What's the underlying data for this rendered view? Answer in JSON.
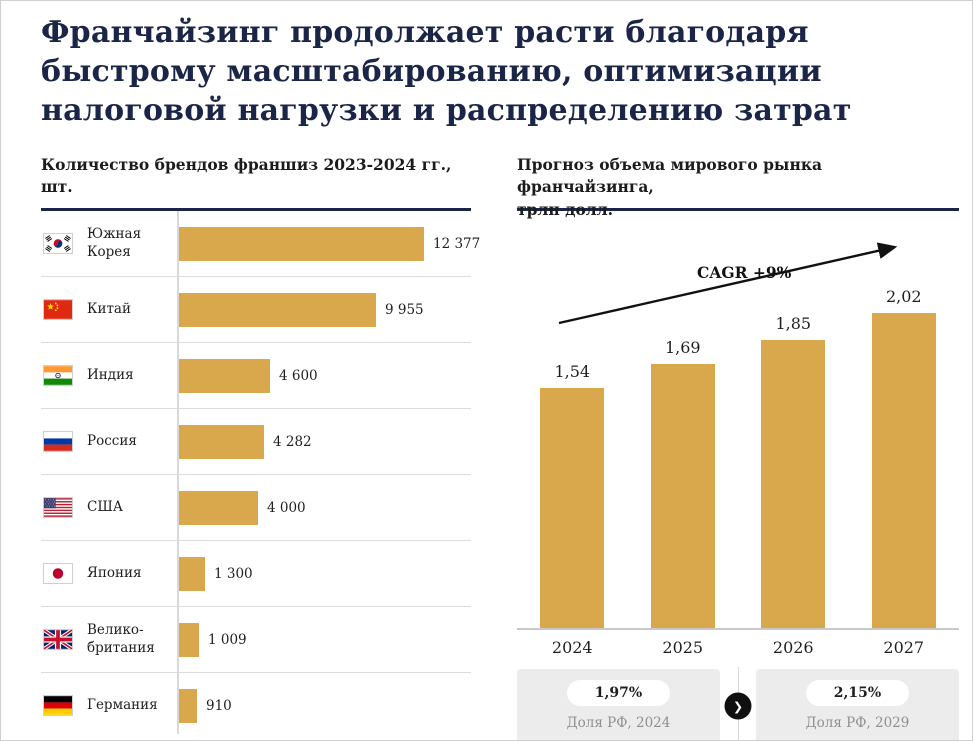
{
  "page": {
    "title": "Франчайзинг продолжает расти благодаря быстрому масштабированию, оптимизации налоговой нагрузки и распределению затрат"
  },
  "colors": {
    "bar_gold": "#d9a84c",
    "title_navy": "#1a2547",
    "footer_gray": "#ececec",
    "caption_gray": "#8f8f8f"
  },
  "left_header": {
    "line1": "Количество брендов франшиз 2023-2024 гг.,",
    "line2": "шт."
  },
  "right_header": {
    "line1": "Прогноз объема мирового рынка франчайзинга,",
    "line2": "трлн долл."
  },
  "icons": {
    "chevron_right": "❯"
  },
  "chart_data": [
    {
      "type": "bar",
      "orientation": "horizontal",
      "title": "Количество брендов франшиз 2023-2024 гг., шт.",
      "categories": [
        "Южная Корея",
        "Китай",
        "Индия",
        "Россия",
        "США",
        "Япония",
        "Велико-британия",
        "Германия"
      ],
      "flags": [
        "south-korea",
        "china",
        "india",
        "russia",
        "usa",
        "japan",
        "uk",
        "germany"
      ],
      "values": [
        12377,
        9955,
        4600,
        4282,
        4000,
        1300,
        1009,
        910
      ],
      "value_labels": [
        "12 377",
        "9 955",
        "4 600",
        "4 282",
        "4 000",
        "1 300",
        "1 009",
        "910"
      ],
      "xlim": [
        0,
        12377
      ],
      "grid": false,
      "legend": false
    },
    {
      "type": "bar",
      "orientation": "vertical",
      "title": "Прогноз объема мирового рынка франчайзинга, трлн долл.",
      "categories": [
        "2024",
        "2025",
        "2026",
        "2027"
      ],
      "values": [
        1.54,
        1.69,
        1.85,
        2.02
      ],
      "value_labels": [
        "1,54",
        "1,69",
        "1,85",
        "2,02"
      ],
      "ylim": [
        0,
        2.1
      ],
      "grid": false,
      "legend": false,
      "annotation": "CAGR +9%",
      "footer": [
        {
          "pill": "1,97%",
          "caption": "Доля РФ, 2024"
        },
        {
          "pill": "2,15%",
          "caption": "Доля РФ, 2029"
        }
      ]
    }
  ]
}
